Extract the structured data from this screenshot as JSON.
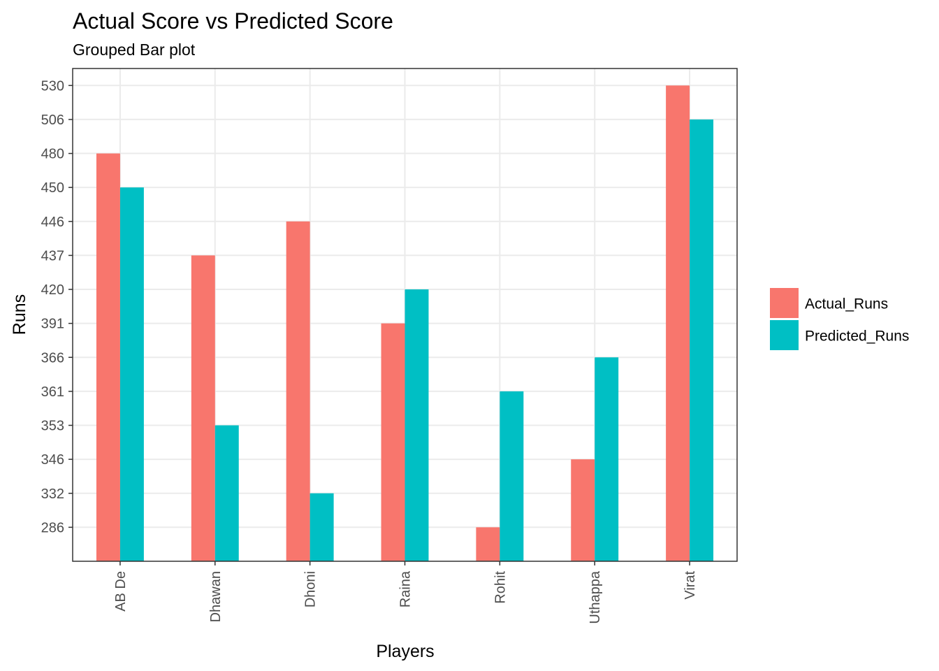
{
  "chart_data": {
    "type": "bar",
    "title": "Actual Score vs Predicted Score",
    "subtitle": "Grouped Bar plot",
    "xlabel": "Players",
    "ylabel": "Runs",
    "categories": [
      "AB De",
      "Dhawan",
      "Dhoni",
      "Raina",
      "Rohit",
      "Uthappa",
      "Virat"
    ],
    "y_axis": {
      "scale": "discrete",
      "ticks": [
        "286",
        "332",
        "346",
        "353",
        "361",
        "366",
        "391",
        "420",
        "437",
        "446",
        "450",
        "480",
        "506",
        "530"
      ]
    },
    "series": [
      {
        "name": "Actual_Runs",
        "color": "#F8766D",
        "values": [
          480,
          437,
          446,
          391,
          286,
          346,
          530
        ]
      },
      {
        "name": "Predicted_Runs",
        "color": "#00BFC4",
        "values": [
          450,
          353,
          332,
          420,
          361,
          366,
          506
        ]
      }
    ],
    "grid": true,
    "legend_position": "right"
  }
}
